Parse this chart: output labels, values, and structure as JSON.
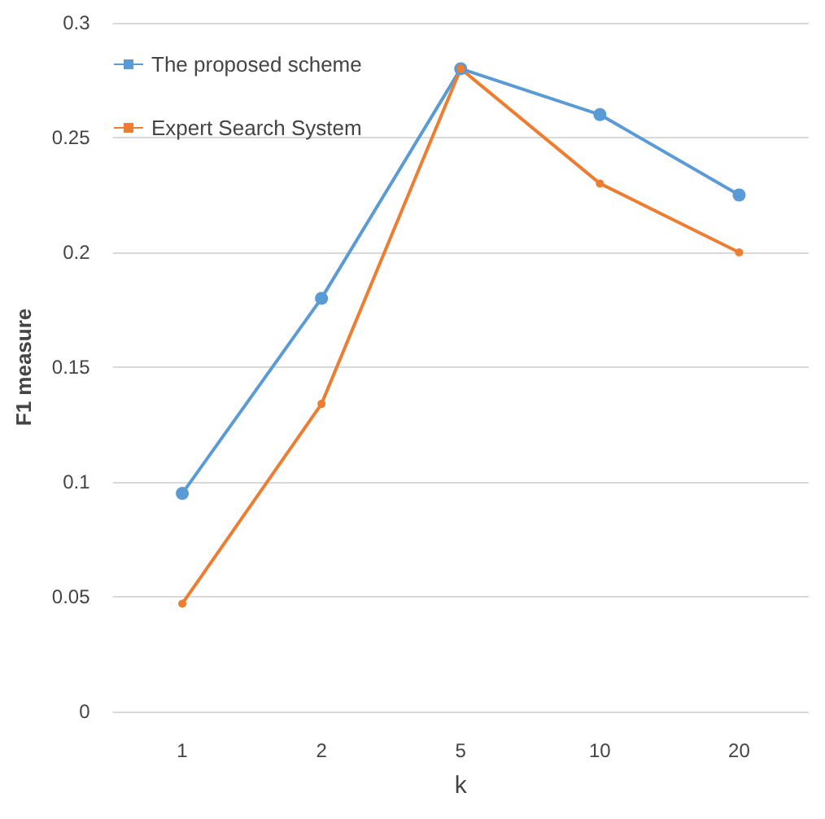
{
  "chart_data": {
    "type": "line",
    "xlabel": "k",
    "ylabel": "F1 measure",
    "categories": [
      "1",
      "2",
      "5",
      "10",
      "20"
    ],
    "series": [
      {
        "name": "The proposed scheme",
        "color": "#5b9bd5",
        "values": [
          0.095,
          0.18,
          0.28,
          0.26,
          0.225
        ]
      },
      {
        "name": "Expert Search System",
        "color": "#ed7d31",
        "values": [
          0.047,
          0.134,
          0.28,
          0.23,
          0.2
        ]
      }
    ],
    "ylim": [
      0,
      0.3
    ],
    "yticks": [
      0,
      0.05,
      0.1,
      0.15,
      0.2,
      0.25,
      0.3
    ],
    "grid": "y",
    "legend": "top left",
    "marker": "circle",
    "line_style": "solid"
  }
}
